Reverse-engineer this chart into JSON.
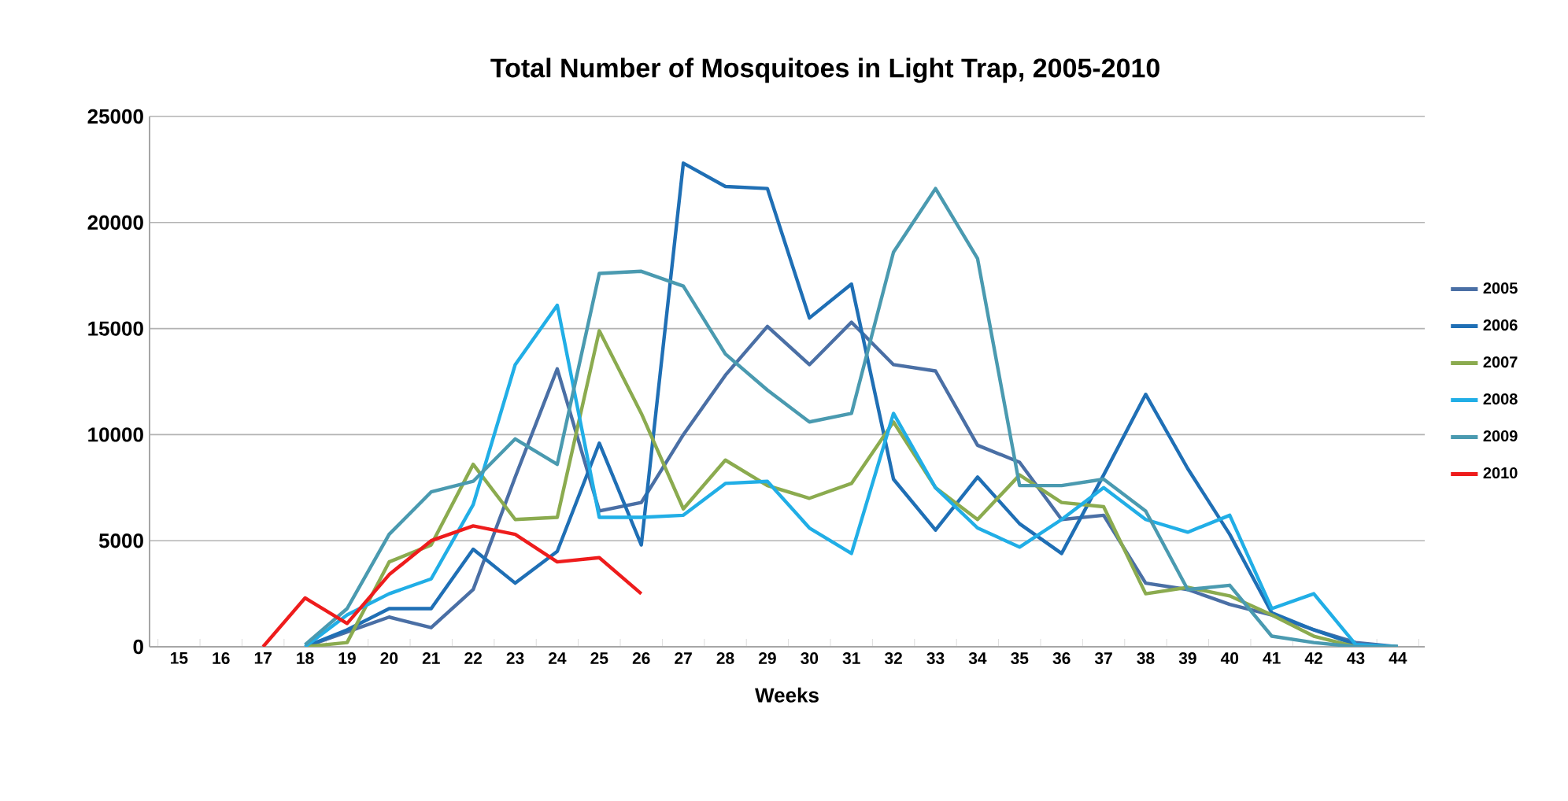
{
  "chart_data": {
    "type": "line",
    "title": "Total Number of Mosquitoes in Light Trap, 2005-2010",
    "xlabel": "Weeks",
    "categories": [
      "15",
      "16",
      "17",
      "18",
      "19",
      "20",
      "21",
      "22",
      "23",
      "24",
      "25",
      "26",
      "27",
      "28",
      "29",
      "30",
      "31",
      "32",
      "33",
      "34",
      "35",
      "36",
      "37",
      "38",
      "39",
      "40",
      "41",
      "42",
      "43",
      "44"
    ],
    "series": [
      {
        "name": "2005",
        "color": "#4a6fa5",
        "values": [
          null,
          null,
          null,
          0,
          700,
          1400,
          900,
          2700,
          8000,
          13100,
          6400,
          6800,
          10000,
          12800,
          15100,
          13300,
          15300,
          13300,
          13000,
          9500,
          8700,
          6000,
          6200,
          3000,
          2700,
          2000,
          1500,
          800,
          200,
          0
        ]
      },
      {
        "name": "2006",
        "color": "#1f6fb5",
        "values": [
          null,
          null,
          null,
          0,
          800,
          1800,
          1800,
          4600,
          3000,
          4500,
          9600,
          4800,
          22800,
          21700,
          21600,
          15500,
          17100,
          7900,
          5500,
          8000,
          5800,
          4400,
          8100,
          11900,
          8400,
          5300,
          1600,
          800,
          100,
          0
        ]
      },
      {
        "name": "2007",
        "color": "#8bab4f",
        "values": [
          null,
          null,
          null,
          0,
          200,
          4000,
          4800,
          8600,
          6000,
          6100,
          14900,
          11000,
          6500,
          8800,
          7600,
          7000,
          7700,
          10600,
          7500,
          6000,
          8100,
          6800,
          6600,
          2500,
          2800,
          2400,
          1500,
          500,
          0,
          0
        ]
      },
      {
        "name": "2008",
        "color": "#21aee6",
        "values": [
          null,
          null,
          null,
          0,
          1500,
          2500,
          3200,
          6700,
          13300,
          16100,
          6100,
          6100,
          6200,
          7700,
          7800,
          5600,
          4400,
          11000,
          7500,
          5600,
          4700,
          6000,
          7500,
          6000,
          5400,
          6200,
          1800,
          2500,
          100,
          0
        ]
      },
      {
        "name": "2009",
        "color": "#4a9ab0",
        "values": [
          null,
          null,
          null,
          100,
          1800,
          5300,
          7300,
          7800,
          9800,
          8600,
          17600,
          17700,
          17000,
          13800,
          12100,
          10600,
          11000,
          18600,
          21600,
          18300,
          7600,
          7600,
          7900,
          6400,
          2700,
          2900,
          500,
          200,
          0,
          0
        ]
      },
      {
        "name": "2010",
        "color": "#ee1c1c",
        "values": [
          null,
          null,
          0,
          2300,
          1100,
          3400,
          5000,
          5700,
          5300,
          4000,
          4200,
          2500,
          null,
          null,
          null,
          null,
          null,
          null,
          null,
          null,
          null,
          null,
          null,
          null,
          null,
          null,
          null,
          null,
          null,
          null
        ]
      }
    ],
    "ylim": [
      0,
      25000
    ],
    "yticks": [
      0,
      5000,
      10000,
      15000,
      20000,
      25000
    ],
    "grid": "y",
    "legend": "right",
    "marker": "none",
    "line_style": "solid"
  }
}
